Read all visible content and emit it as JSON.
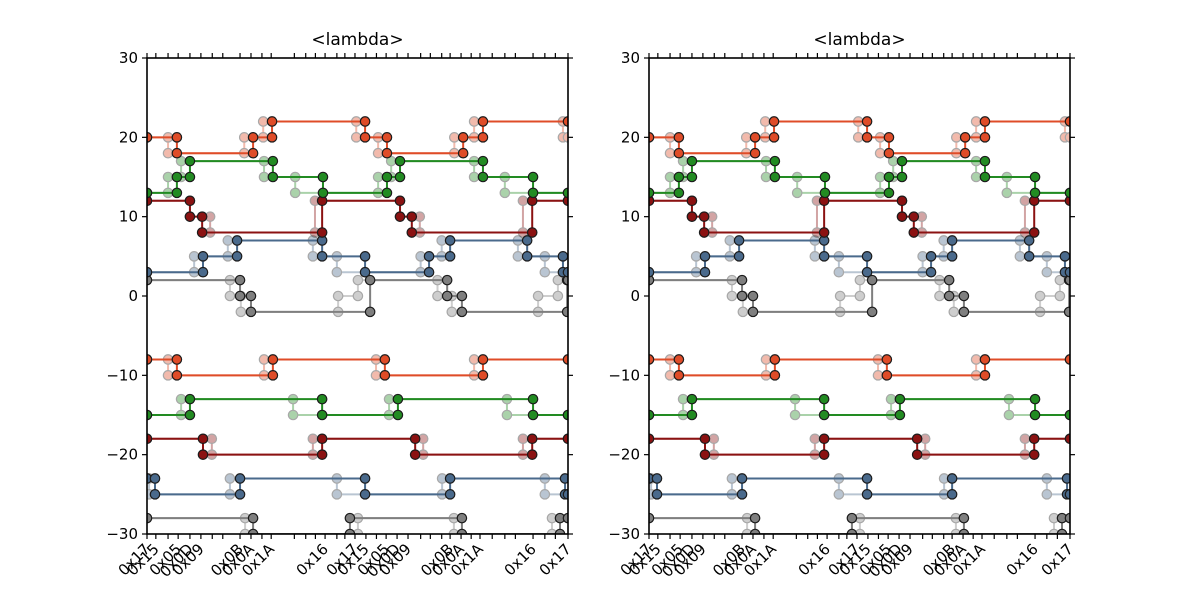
{
  "figure": {
    "background": "#ffffff"
  },
  "chart_data": {
    "type": "line",
    "style": "event step traces with circle markers; each colored series has a translucent ghost copy",
    "subplots": [
      {
        "title": "<lambda>"
      },
      {
        "title": "<lambda>"
      }
    ],
    "note": "both subplots display identical data",
    "y_axis": {
      "min": -30,
      "max": 30,
      "tick_values": [
        30,
        20,
        10,
        0,
        -10,
        -20,
        -30
      ],
      "tick_labels": [
        "30",
        "20",
        "10",
        "0",
        "−10",
        "−20",
        "−30"
      ]
    },
    "x_axis": {
      "labels": [
        {
          "label": "0x17",
          "pos": 0.0
        },
        {
          "label": "0x15",
          "pos": 0.021
        },
        {
          "label": "0x05",
          "pos": 0.074
        },
        {
          "label": "0x0D",
          "pos": 0.102
        },
        {
          "label": "0x09",
          "pos": 0.128
        },
        {
          "label": "0x0B",
          "pos": 0.221
        },
        {
          "label": "0x0A",
          "pos": 0.247
        },
        {
          "label": "0x1A",
          "pos": 0.295
        },
        {
          "label": "0x16",
          "pos": 0.423
        },
        {
          "label": "0x17",
          "pos": 0.494
        },
        {
          "label": "0x15",
          "pos": 0.52
        },
        {
          "label": "0x05",
          "pos": 0.568
        },
        {
          "label": "0x0D",
          "pos": 0.594
        },
        {
          "label": "0x09",
          "pos": 0.62
        },
        {
          "label": "0x0B",
          "pos": 0.72
        },
        {
          "label": "0x0A",
          "pos": 0.746
        },
        {
          "label": "0x1A",
          "pos": 0.791
        },
        {
          "label": "0x16",
          "pos": 0.917
        },
        {
          "label": "0x17",
          "pos": 1.0
        }
      ],
      "ticks": [
        0,
        0.021,
        0.05,
        0.074,
        0.102,
        0.128,
        0.155,
        0.18,
        0.221,
        0.247,
        0.273,
        0.295,
        0.35,
        0.377,
        0.4,
        0.423,
        0.451,
        0.47,
        0.494,
        0.52,
        0.545,
        0.568,
        0.594,
        0.62,
        0.65,
        0.673,
        0.7,
        0.72,
        0.746,
        0.77,
        0.791,
        0.82,
        0.85,
        0.875,
        0.917,
        0.945,
        0.97,
        1.0
      ]
    },
    "colors": {
      "orange": "#df4c28",
      "green": "#228b22",
      "darkred": "#8b1212",
      "steelblue": "#4a6a8c",
      "gray": "#7f7f7f",
      "marker_edge": "#1c1c1c",
      "axis": "#000000",
      "ghost_alpha": 0.38
    },
    "series": [
      {
        "id": "gray-upper-ghost",
        "color": "#7f7f7f",
        "alpha": 0.38,
        "steps": [
          [
            0,
            2
          ],
          [
            0.197,
            0
          ],
          [
            0.223,
            -2
          ],
          [
            0.454,
            0
          ],
          [
            0.501,
            2
          ],
          [
            0.69,
            0
          ],
          [
            0.724,
            -2
          ],
          [
            0.929,
            0
          ],
          [
            0.976,
            2
          ]
        ]
      },
      {
        "id": "gray-upper",
        "color": "#7f7f7f",
        "alpha": 1,
        "steps": [
          [
            0,
            2
          ],
          [
            0.221,
            0
          ],
          [
            0.247,
            -2
          ],
          [
            0.53,
            2
          ],
          [
            0.713,
            0
          ],
          [
            0.748,
            -2
          ],
          [
            0.998,
            2
          ]
        ]
      },
      {
        "id": "gray-lower-ghost",
        "color": "#7f7f7f",
        "alpha": 0.38,
        "steps": [
          [
            0,
            -28
          ],
          [
            0.233,
            -30
          ],
          [
            0.501,
            -28
          ],
          [
            0.729,
            -30
          ],
          [
            0.962,
            -28
          ]
        ]
      },
      {
        "id": "gray-lower",
        "color": "#7f7f7f",
        "alpha": 1,
        "steps": [
          [
            0,
            -28
          ],
          [
            0.252,
            -30
          ],
          [
            0.482,
            -28
          ],
          [
            0.748,
            -30
          ],
          [
            0.981,
            -28
          ]
        ]
      },
      {
        "id": "steelblue-upper-ghost",
        "color": "#4a6a8c",
        "alpha": 0.38,
        "steps": [
          [
            0,
            3
          ],
          [
            0.112,
            5
          ],
          [
            0.192,
            7
          ],
          [
            0.394,
            5
          ],
          [
            0.451,
            3
          ],
          [
            0.65,
            5
          ],
          [
            0.7,
            7
          ],
          [
            0.881,
            5
          ],
          [
            0.945,
            3
          ]
        ]
      },
      {
        "id": "steelblue-upper",
        "color": "#4a6a8c",
        "alpha": 1,
        "steps": [
          [
            0,
            3
          ],
          [
            0.133,
            5
          ],
          [
            0.214,
            7
          ],
          [
            0.416,
            5
          ],
          [
            0.518,
            3
          ],
          [
            0.67,
            5
          ],
          [
            0.72,
            7
          ],
          [
            0.903,
            5
          ],
          [
            0.988,
            3
          ]
        ]
      },
      {
        "id": "steelblue-lower-ghost",
        "color": "#4a6a8c",
        "alpha": 0.38,
        "steps": [
          [
            0,
            -23
          ],
          [
            0.005,
            -25
          ],
          [
            0.197,
            -23
          ],
          [
            0.451,
            -25
          ],
          [
            0.701,
            -23
          ],
          [
            0.945,
            -25
          ]
        ]
      },
      {
        "id": "steelblue-lower",
        "color": "#4a6a8c",
        "alpha": 1,
        "steps": [
          [
            0,
            -23
          ],
          [
            0.019,
            -25
          ],
          [
            0.221,
            -23
          ],
          [
            0.518,
            -25
          ],
          [
            0.72,
            -23
          ],
          [
            0.993,
            -25
          ]
        ]
      },
      {
        "id": "darkred-upper-ghost",
        "color": "#8b1212",
        "alpha": 0.38,
        "steps": [
          [
            0,
            12
          ],
          [
            0.102,
            10
          ],
          [
            0.15,
            8
          ],
          [
            0.399,
            12
          ],
          [
            0.601,
            10
          ],
          [
            0.648,
            8
          ],
          [
            0.893,
            12
          ]
        ]
      },
      {
        "id": "darkred-upper",
        "color": "#8b1212",
        "alpha": 1,
        "steps": [
          [
            0,
            12
          ],
          [
            0.102,
            10
          ],
          [
            0.131,
            8
          ],
          [
            0.416,
            12
          ],
          [
            0.601,
            10
          ],
          [
            0.629,
            8
          ],
          [
            0.915,
            12
          ]
        ]
      },
      {
        "id": "darkred-lower-ghost",
        "color": "#8b1212",
        "alpha": 0.38,
        "steps": [
          [
            0,
            -18
          ],
          [
            0.154,
            -20
          ],
          [
            0.394,
            -18
          ],
          [
            0.656,
            -20
          ],
          [
            0.893,
            -18
          ]
        ]
      },
      {
        "id": "darkred-lower",
        "color": "#8b1212",
        "alpha": 1,
        "steps": [
          [
            0,
            -18
          ],
          [
            0.133,
            -20
          ],
          [
            0.416,
            -18
          ],
          [
            0.637,
            -20
          ],
          [
            0.915,
            -18
          ]
        ]
      },
      {
        "id": "green-upper-ghost",
        "color": "#228b22",
        "alpha": 0.38,
        "steps": [
          [
            0,
            13
          ],
          [
            0.05,
            15
          ],
          [
            0.081,
            17
          ],
          [
            0.278,
            15
          ],
          [
            0.352,
            13
          ],
          [
            0.549,
            15
          ],
          [
            0.58,
            17
          ],
          [
            0.777,
            15
          ],
          [
            0.85,
            13
          ]
        ]
      },
      {
        "id": "green-upper",
        "color": "#228b22",
        "alpha": 1,
        "steps": [
          [
            0,
            13
          ],
          [
            0.071,
            15
          ],
          [
            0.102,
            17
          ],
          [
            0.299,
            15
          ],
          [
            0.418,
            13
          ],
          [
            0.57,
            15
          ],
          [
            0.601,
            17
          ],
          [
            0.798,
            15
          ],
          [
            0.917,
            13
          ]
        ]
      },
      {
        "id": "green-lower-ghost",
        "color": "#228b22",
        "alpha": 0.38,
        "steps": [
          [
            0,
            -15
          ],
          [
            0.081,
            -13
          ],
          [
            0.347,
            -15
          ],
          [
            0.575,
            -13
          ],
          [
            0.855,
            -15
          ]
        ]
      },
      {
        "id": "green-lower",
        "color": "#228b22",
        "alpha": 1,
        "steps": [
          [
            0,
            -15
          ],
          [
            0.102,
            -13
          ],
          [
            0.416,
            -15
          ],
          [
            0.596,
            -13
          ],
          [
            0.917,
            -15
          ]
        ]
      },
      {
        "id": "orange-upper-ghost",
        "color": "#df4c28",
        "alpha": 0.38,
        "steps": [
          [
            0,
            20
          ],
          [
            0.05,
            18
          ],
          [
            0.231,
            20
          ],
          [
            0.276,
            22
          ],
          [
            0.497,
            20
          ],
          [
            0.549,
            18
          ],
          [
            0.73,
            20
          ],
          [
            0.777,
            22
          ],
          [
            0.988,
            20
          ]
        ]
      },
      {
        "id": "orange-upper",
        "color": "#df4c28",
        "alpha": 1,
        "steps": [
          [
            0,
            20
          ],
          [
            0.071,
            18
          ],
          [
            0.252,
            20
          ],
          [
            0.297,
            22
          ],
          [
            0.518,
            20
          ],
          [
            0.57,
            18
          ],
          [
            0.751,
            20
          ],
          [
            0.798,
            22
          ]
        ]
      },
      {
        "id": "orange-lower-ghost",
        "color": "#df4c28",
        "alpha": 0.38,
        "steps": [
          [
            0,
            -8
          ],
          [
            0.05,
            -10
          ],
          [
            0.278,
            -8
          ],
          [
            0.544,
            -10
          ],
          [
            0.777,
            -8
          ]
        ]
      },
      {
        "id": "orange-lower",
        "color": "#df4c28",
        "alpha": 1,
        "steps": [
          [
            0,
            -8
          ],
          [
            0.071,
            -10
          ],
          [
            0.299,
            -8
          ],
          [
            0.565,
            -10
          ],
          [
            0.798,
            -8
          ]
        ]
      }
    ]
  }
}
